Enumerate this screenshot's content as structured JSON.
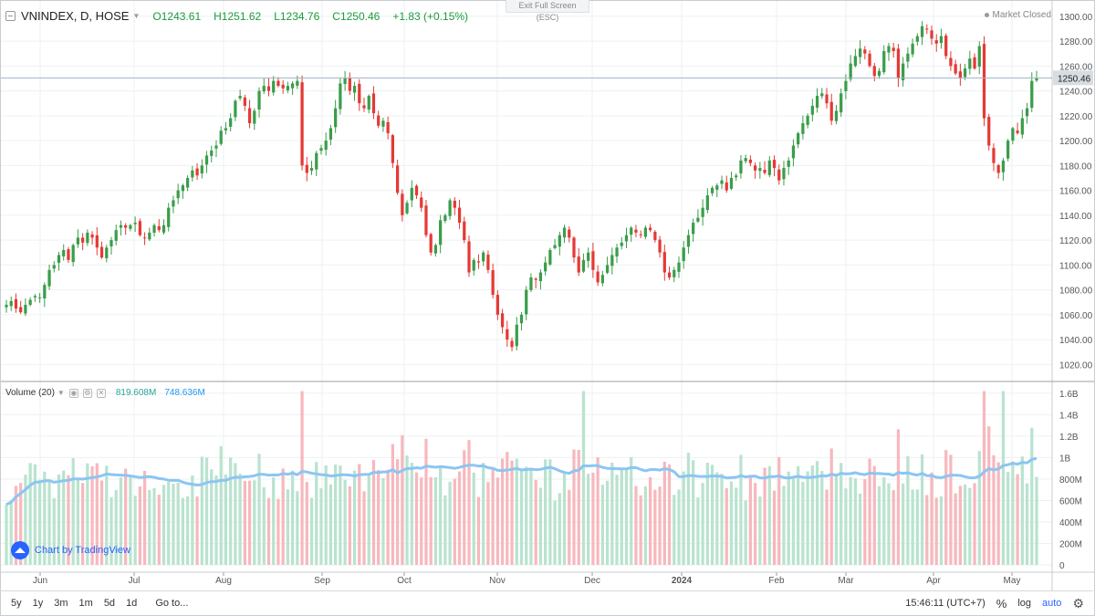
{
  "legend": {
    "symbol": "VNINDEX, D, HOSE",
    "o_label": "O",
    "o_value": "1243.61",
    "h_label": "H",
    "h_value": "1251.62",
    "l_label": "L",
    "l_value": "1234.76",
    "c_label": "C",
    "c_value": "1250.46",
    "change": "+1.83 (+0.15%)"
  },
  "exit_fullscreen": "Exit Full Screen (ESC)",
  "market_status": "Market Closed",
  "volume_legend": {
    "title": "Volume (20)",
    "value": "819.608M",
    "ma_value": "748.636M"
  },
  "badge": "Chart by TradingView",
  "toolbar": {
    "ranges": [
      "5y",
      "1y",
      "3m",
      "1m",
      "5d",
      "1d"
    ],
    "goto": "Go to...",
    "clock": "15:46:11 (UTC+7)",
    "percent": "%",
    "log": "log",
    "auto": "auto"
  },
  "colors": {
    "up": "#26a69a",
    "down": "#ef5350",
    "up_candle": "#3a9d4a",
    "down_candle": "#e53935",
    "up_vol": "#b9e3cf",
    "down_vol": "#f7b8bd",
    "ma": "#8cc5f2",
    "grid": "#eef0f2",
    "axis": "#555555",
    "last_price_bg": "#d8dde2"
  },
  "chart_data": [
    {
      "type": "candlestick",
      "title": "VNINDEX, D, HOSE",
      "x_labels": [
        "Jun",
        "Jul",
        "Aug",
        "Sep",
        "Oct",
        "Nov",
        "Dec",
        "2024",
        "Feb",
        "Mar",
        "Apr",
        "May"
      ],
      "y_ticks": [
        1020,
        1040,
        1060,
        1080,
        1100,
        1120,
        1140,
        1160,
        1180,
        1200,
        1220,
        1240,
        1260,
        1280,
        1300
      ],
      "ylim": [
        1010,
        1305
      ],
      "last_price": "1250.46",
      "grid": true,
      "close": [
        1068,
        1071,
        1065,
        1062,
        1068,
        1072,
        1075,
        1074,
        1084,
        1096,
        1100,
        1108,
        1112,
        1104,
        1116,
        1122,
        1118,
        1126,
        1122,
        1114,
        1106,
        1114,
        1120,
        1128,
        1132,
        1130,
        1132,
        1134,
        1124,
        1122,
        1126,
        1132,
        1128,
        1132,
        1146,
        1152,
        1160,
        1164,
        1170,
        1176,
        1172,
        1180,
        1188,
        1192,
        1196,
        1208,
        1210,
        1218,
        1232,
        1236,
        1228,
        1214,
        1224,
        1240,
        1244,
        1240,
        1248,
        1244,
        1242,
        1244,
        1246,
        1248,
        1180,
        1174,
        1178,
        1190,
        1194,
        1200,
        1210,
        1226,
        1246,
        1250,
        1240,
        1244,
        1230,
        1226,
        1236,
        1222,
        1212,
        1216,
        1206,
        1182,
        1158,
        1140,
        1150,
        1162,
        1156,
        1146,
        1124,
        1110,
        1116,
        1136,
        1140,
        1152,
        1146,
        1134,
        1120,
        1094,
        1104,
        1102,
        1110,
        1096,
        1076,
        1060,
        1050,
        1040,
        1034,
        1052,
        1060,
        1080,
        1090,
        1088,
        1094,
        1102,
        1112,
        1116,
        1124,
        1130,
        1122,
        1106,
        1094,
        1104,
        1110,
        1096,
        1086,
        1092,
        1100,
        1108,
        1114,
        1118,
        1124,
        1130,
        1126,
        1124,
        1130,
        1128,
        1120,
        1110,
        1094,
        1090,
        1096,
        1102,
        1114,
        1124,
        1134,
        1138,
        1146,
        1156,
        1162,
        1164,
        1168,
        1160,
        1170,
        1172,
        1184,
        1186,
        1182,
        1176,
        1178,
        1174,
        1184,
        1178,
        1168,
        1178,
        1184,
        1196,
        1206,
        1214,
        1220,
        1228,
        1236,
        1238,
        1230,
        1216,
        1224,
        1238,
        1248,
        1262,
        1268,
        1274,
        1270,
        1260,
        1252,
        1256,
        1272,
        1276,
        1272,
        1250,
        1262,
        1270,
        1278,
        1284,
        1292,
        1290,
        1282,
        1278,
        1284,
        1268,
        1260,
        1254,
        1250,
        1258,
        1266,
        1258,
        1276,
        1218,
        1196,
        1182,
        1174,
        1184,
        1200,
        1210,
        1206,
        1218,
        1226,
        1248,
        1250
      ]
    },
    {
      "type": "bar",
      "title": "Volume (20)",
      "y_ticks_labels": [
        "0",
        "200M",
        "400M",
        "600M",
        "800M",
        "1B",
        "1.2B",
        "1.4B",
        "1.6B"
      ],
      "y_ticks_values": [
        0,
        200,
        400,
        600,
        800,
        1000,
        1200,
        1400,
        1600
      ],
      "ylim": [
        0,
        1650
      ],
      "unit": "M",
      "last_value": "819.608M",
      "ma_last_value": "748.636M"
    }
  ]
}
